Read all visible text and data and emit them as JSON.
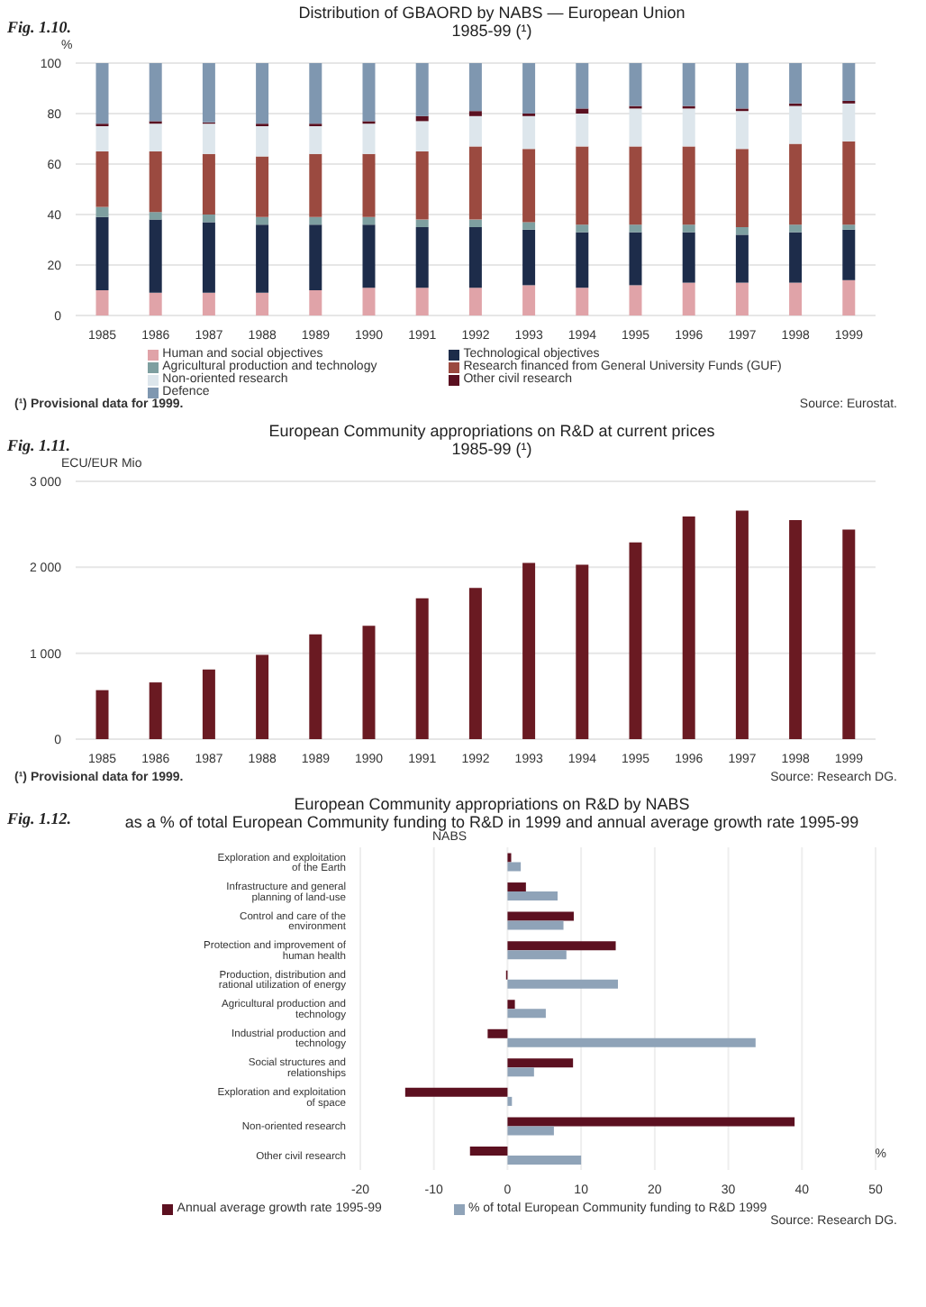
{
  "chart_data": [
    {
      "type": "bar",
      "title": "Distribution of GBAORD by NABS — European Union",
      "subtitle": "1985-99 (¹)",
      "ylabel": "%",
      "annotations": [
        "Fig. 1.10.",
        "(¹) Provisional data for 1999.",
        "Source: Eurostat."
      ],
      "categories": [
        "1985",
        "1986",
        "1987",
        "1988",
        "1989",
        "1990",
        "1991",
        "1992",
        "1993",
        "1994",
        "1995",
        "1996",
        "1997",
        "1998",
        "1999"
      ],
      "stacked": true,
      "ylim": [
        0,
        100
      ],
      "yticks": [
        0,
        20,
        40,
        60,
        80,
        100
      ],
      "grid": "y",
      "legend": "bottom",
      "series": [
        {
          "name": "Human and social objectives",
          "color": "#e0a3a8",
          "values": [
            10,
            9,
            9,
            9,
            10,
            11,
            11,
            11,
            12,
            11,
            12,
            13,
            13,
            13,
            14
          ]
        },
        {
          "name": "Technological objectives",
          "color": "#1d2c4a",
          "values": [
            29,
            29,
            28,
            27,
            26,
            25,
            24,
            24,
            22,
            22,
            21,
            20,
            19,
            20,
            20
          ]
        },
        {
          "name": "Agricultural production and technology",
          "color": "#7e9fa0",
          "values": [
            4,
            3,
            3,
            3,
            3,
            3,
            3,
            3,
            3,
            3,
            3,
            3,
            3,
            3,
            2
          ]
        },
        {
          "name": "Research financed from General University Funds (GUF)",
          "color": "#9b4a40",
          "values": [
            22,
            24,
            24,
            24,
            25,
            25,
            27,
            29,
            29,
            31,
            31,
            31,
            31,
            32,
            33
          ]
        },
        {
          "name": "Non-oriented research",
          "color": "#dde6ec",
          "values": [
            10,
            11,
            12,
            12,
            11,
            12,
            12,
            12,
            13,
            13,
            15,
            15,
            15,
            15,
            15
          ]
        },
        {
          "name": "Other civil research",
          "color": "#5a1020",
          "values": [
            1,
            1,
            0.5,
            1,
            1,
            1,
            2,
            2,
            1,
            2,
            1,
            1,
            1,
            1,
            1
          ]
        },
        {
          "name": "Defence",
          "color": "#7f97b0",
          "values": [
            24,
            23,
            23.5,
            24,
            24,
            23,
            21,
            19,
            20,
            18,
            17,
            17,
            18,
            16,
            15
          ]
        }
      ]
    },
    {
      "type": "bar",
      "title": "European Community appropriations on R&D at current prices",
      "subtitle": "1985-99 (¹)",
      "ylabel": "ECU/EUR Mio",
      "annotations": [
        "Fig. 1.11.",
        "(¹) Provisional data for 1999.",
        "Source: Research DG."
      ],
      "categories": [
        "1985",
        "1986",
        "1987",
        "1988",
        "1989",
        "1990",
        "1991",
        "1992",
        "1993",
        "1994",
        "1995",
        "1996",
        "1997",
        "1998",
        "1999"
      ],
      "ylim": [
        0,
        3000
      ],
      "yticks": [
        0,
        {
          "value": 1000,
          "label": "1 000"
        },
        {
          "value": 2000,
          "label": "2 000"
        },
        {
          "value": 3000,
          "label": "3 000"
        }
      ],
      "grid": "y",
      "color": "#6a1a22",
      "values": [
        570,
        660,
        810,
        980,
        1220,
        1320,
        1640,
        1760,
        2050,
        2030,
        2290,
        2590,
        2660,
        2550,
        2440
      ]
    },
    {
      "type": "bar",
      "orientation": "horizontal",
      "title": "European Community appropriations on R&D by NABS",
      "subtitle": "as a % of total European Community funding to R&D in 1999 and annual average growth rate 1995-99",
      "ylabel": "NABS",
      "xlabel": "%",
      "annotations": [
        "Fig. 1.12.",
        "Source: Research DG."
      ],
      "categories": [
        "Exploration and exploitation of the Earth",
        "Infrastructure and general planning of land-use",
        "Control and care of the environment",
        "Protection and improvement of human health",
        "Production, distribution and rational utilization of energy",
        "Agricultural production and technology",
        "Industrial production and technology",
        "Social structures and relationships",
        "Exploration and exploitation of space",
        "Non-oriented research",
        "Other civil research"
      ],
      "xlim": [
        -20,
        50
      ],
      "xticks": [
        -20,
        -10,
        0,
        10,
        20,
        30,
        40,
        50
      ],
      "grid": "x",
      "legend": "bottom",
      "series": [
        {
          "name": "Annual average growth rate 1995-99",
          "color": "#5c1020",
          "values": [
            0.5,
            2.5,
            9,
            14.7,
            -0.2,
            1,
            -2.7,
            8.9,
            -13.9,
            39,
            -5.1
          ]
        },
        {
          "name": "% of total European Community funding to R&D 1999",
          "color": "#8fa3b8",
          "values": [
            1.8,
            6.8,
            7.6,
            8,
            15,
            5.2,
            33.7,
            3.6,
            0.6,
            6.3,
            10
          ]
        }
      ]
    }
  ]
}
